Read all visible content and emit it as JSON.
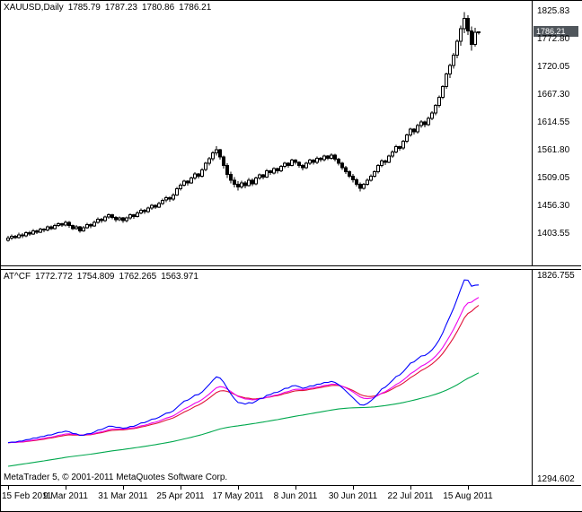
{
  "footer": {
    "text": "MetaTrader 5, © 2001-2011 MetaQuotes Software Corp."
  },
  "colors": {
    "candle_up": "#ffffff",
    "candle_down": "#000000",
    "candle_outline": "#000000",
    "price_badge_bg": "#50565c",
    "price_badge_text": "#ffffff",
    "axis_text": "#000000"
  },
  "chart_data": [
    {
      "type": "candlestick",
      "title": "XAUUSD,Daily",
      "current": {
        "open": "1785.79",
        "high": "1787.23",
        "low": "1780.86",
        "close": "1786.21"
      },
      "price_marker": "1786.21",
      "y_axis_labels": [
        "1825.83",
        "1772.80",
        "1720.05",
        "1667.30",
        "1614.55",
        "1561.80",
        "1509.05",
        "1456.30",
        "1403.55"
      ],
      "ylim": [
        1342,
        1845
      ],
      "x_axis": {
        "labels": [
          "15 Feb 2011",
          "9 Mar 2011",
          "31 Mar 2011",
          "25 Apr 2011",
          "17 May 2011",
          "8 Jun 2011",
          "30 Jun 2011",
          "22 Jul 2011",
          "15 Aug 2011"
        ],
        "bar_indices": [
          0,
          16,
          32,
          48,
          64,
          80,
          96,
          112,
          128
        ]
      },
      "candles": [
        [
          1390,
          1398,
          1387,
          1394
        ],
        [
          1394,
          1401,
          1391,
          1397
        ],
        [
          1397,
          1400,
          1392,
          1395
        ],
        [
          1395,
          1404,
          1393,
          1400
        ],
        [
          1400,
          1403,
          1394,
          1398
        ],
        [
          1398,
          1407,
          1396,
          1404
        ],
        [
          1404,
          1408,
          1398,
          1402
        ],
        [
          1402,
          1411,
          1400,
          1408
        ],
        [
          1408,
          1410,
          1402,
          1405
        ],
        [
          1405,
          1414,
          1403,
          1411
        ],
        [
          1411,
          1413,
          1405,
          1409
        ],
        [
          1409,
          1418,
          1407,
          1415
        ],
        [
          1415,
          1418,
          1409,
          1412
        ],
        [
          1412,
          1421,
          1410,
          1418
        ],
        [
          1418,
          1424,
          1415,
          1421
        ],
        [
          1421,
          1423,
          1415,
          1419
        ],
        [
          1419,
          1427,
          1416,
          1424
        ],
        [
          1424,
          1426,
          1414,
          1418
        ],
        [
          1418,
          1420,
          1409,
          1412
        ],
        [
          1412,
          1419,
          1410,
          1415
        ],
        [
          1415,
          1417,
          1404,
          1408
        ],
        [
          1408,
          1417,
          1406,
          1414
        ],
        [
          1414,
          1423,
          1412,
          1420
        ],
        [
          1420,
          1422,
          1413,
          1417
        ],
        [
          1417,
          1427,
          1415,
          1424
        ],
        [
          1424,
          1433,
          1421,
          1430
        ],
        [
          1430,
          1432,
          1423,
          1427
        ],
        [
          1427,
          1437,
          1425,
          1434
        ],
        [
          1434,
          1441,
          1431,
          1438
        ],
        [
          1438,
          1440,
          1430,
          1433
        ],
        [
          1433,
          1436,
          1425,
          1429
        ],
        [
          1429,
          1435,
          1426,
          1432
        ],
        [
          1432,
          1434,
          1423,
          1427
        ],
        [
          1427,
          1435,
          1424,
          1432
        ],
        [
          1432,
          1441,
          1429,
          1438
        ],
        [
          1438,
          1440,
          1431,
          1435
        ],
        [
          1435,
          1445,
          1433,
          1442
        ],
        [
          1442,
          1450,
          1439,
          1447
        ],
        [
          1447,
          1449,
          1440,
          1444
        ],
        [
          1444,
          1454,
          1442,
          1451
        ],
        [
          1451,
          1459,
          1448,
          1456
        ],
        [
          1456,
          1458,
          1449,
          1453
        ],
        [
          1453,
          1463,
          1451,
          1460
        ],
        [
          1460,
          1469,
          1457,
          1466
        ],
        [
          1466,
          1474,
          1462,
          1471
        ],
        [
          1471,
          1473,
          1463,
          1468
        ],
        [
          1468,
          1479,
          1465,
          1476
        ],
        [
          1476,
          1491,
          1474,
          1488
        ],
        [
          1488,
          1498,
          1484,
          1495
        ],
        [
          1495,
          1505,
          1492,
          1502
        ],
        [
          1502,
          1504,
          1494,
          1499
        ],
        [
          1499,
          1511,
          1497,
          1508
        ],
        [
          1508,
          1519,
          1505,
          1516
        ],
        [
          1516,
          1518,
          1507,
          1512
        ],
        [
          1512,
          1527,
          1509,
          1524
        ],
        [
          1524,
          1539,
          1521,
          1536
        ],
        [
          1536,
          1548,
          1532,
          1545
        ],
        [
          1545,
          1559,
          1541,
          1556
        ],
        [
          1556,
          1569,
          1551,
          1562
        ],
        [
          1562,
          1564,
          1543,
          1548
        ],
        [
          1548,
          1551,
          1526,
          1532
        ],
        [
          1532,
          1536,
          1508,
          1515
        ],
        [
          1515,
          1520,
          1498,
          1504
        ],
        [
          1504,
          1510,
          1490,
          1496
        ],
        [
          1496,
          1502,
          1484,
          1491
        ],
        [
          1491,
          1503,
          1488,
          1499
        ],
        [
          1499,
          1502,
          1489,
          1494
        ],
        [
          1494,
          1508,
          1492,
          1504
        ],
        [
          1504,
          1507,
          1493,
          1497
        ],
        [
          1497,
          1511,
          1495,
          1508
        ],
        [
          1508,
          1517,
          1505,
          1514
        ],
        [
          1514,
          1516,
          1506,
          1510
        ],
        [
          1510,
          1525,
          1508,
          1522
        ],
        [
          1522,
          1524,
          1514,
          1518
        ],
        [
          1518,
          1529,
          1515,
          1526
        ],
        [
          1526,
          1528,
          1517,
          1522
        ],
        [
          1522,
          1533,
          1519,
          1530
        ],
        [
          1530,
          1539,
          1527,
          1536
        ],
        [
          1536,
          1538,
          1528,
          1532
        ],
        [
          1532,
          1545,
          1530,
          1542
        ],
        [
          1542,
          1544,
          1534,
          1538
        ],
        [
          1538,
          1540,
          1528,
          1532
        ],
        [
          1532,
          1535,
          1523,
          1528
        ],
        [
          1528,
          1539,
          1525,
          1536
        ],
        [
          1536,
          1545,
          1533,
          1542
        ],
        [
          1542,
          1544,
          1534,
          1538
        ],
        [
          1538,
          1549,
          1535,
          1546
        ],
        [
          1546,
          1548,
          1539,
          1543
        ],
        [
          1543,
          1553,
          1540,
          1550
        ],
        [
          1550,
          1552,
          1542,
          1546
        ],
        [
          1546,
          1555,
          1543,
          1552
        ],
        [
          1552,
          1554,
          1540,
          1544
        ],
        [
          1544,
          1547,
          1532,
          1536
        ],
        [
          1536,
          1539,
          1524,
          1528
        ],
        [
          1528,
          1531,
          1516,
          1520
        ],
        [
          1520,
          1523,
          1508,
          1512
        ],
        [
          1512,
          1516,
          1500,
          1505
        ],
        [
          1505,
          1508,
          1492,
          1496
        ],
        [
          1496,
          1500,
          1483,
          1489
        ],
        [
          1489,
          1499,
          1486,
          1496
        ],
        [
          1496,
          1507,
          1494,
          1504
        ],
        [
          1504,
          1515,
          1501,
          1512
        ],
        [
          1512,
          1523,
          1509,
          1520
        ],
        [
          1520,
          1535,
          1517,
          1532
        ],
        [
          1532,
          1544,
          1529,
          1541
        ],
        [
          1541,
          1543,
          1533,
          1538
        ],
        [
          1538,
          1553,
          1536,
          1550
        ],
        [
          1550,
          1561,
          1547,
          1558
        ],
        [
          1558,
          1571,
          1555,
          1568
        ],
        [
          1568,
          1570,
          1560,
          1565
        ],
        [
          1565,
          1581,
          1562,
          1578
        ],
        [
          1578,
          1593,
          1575,
          1590
        ],
        [
          1590,
          1604,
          1587,
          1601
        ],
        [
          1601,
          1603,
          1591,
          1596
        ],
        [
          1596,
          1611,
          1593,
          1608
        ],
        [
          1608,
          1618,
          1604,
          1615
        ],
        [
          1615,
          1617,
          1605,
          1610
        ],
        [
          1610,
          1625,
          1607,
          1622
        ],
        [
          1622,
          1635,
          1618,
          1632
        ],
        [
          1632,
          1649,
          1628,
          1646
        ],
        [
          1646,
          1665,
          1642,
          1662
        ],
        [
          1662,
          1685,
          1658,
          1682
        ],
        [
          1682,
          1709,
          1678,
          1706
        ],
        [
          1706,
          1726,
          1698,
          1722
        ],
        [
          1722,
          1746,
          1716,
          1742
        ],
        [
          1742,
          1772,
          1736,
          1768
        ],
        [
          1768,
          1798,
          1760,
          1792
        ],
        [
          1792,
          1824,
          1784,
          1812
        ],
        [
          1812,
          1818,
          1780,
          1788
        ],
        [
          1788,
          1796,
          1750,
          1762
        ],
        [
          1762,
          1794,
          1758,
          1785.5
        ],
        [
          1785.79,
          1787.23,
          1780.86,
          1786.21
        ]
      ]
    },
    {
      "type": "line",
      "name": "AT^CF",
      "values": [
        "1772.772",
        "1754.809",
        "1762.265",
        "1563.971"
      ],
      "y_axis_labels": [
        "1826.755",
        "1294.602"
      ],
      "ylim": [
        1285,
        1838
      ],
      "series": [
        {
          "name": "filter-green",
          "color": "#00A84E",
          "derive": {
            "period": 90,
            "seed": 1332
          }
        },
        {
          "name": "slow-red",
          "color": "#E01038",
          "derive": {
            "period": 12
          }
        },
        {
          "name": "medium-magenta",
          "color": "#EE00EE",
          "derive": {
            "period": 8
          }
        },
        {
          "name": "fast-blue",
          "color": "#0000FF",
          "derive": {
            "fast": 4,
            "slow": 12,
            "overshoot": 0.5
          }
        }
      ]
    }
  ]
}
